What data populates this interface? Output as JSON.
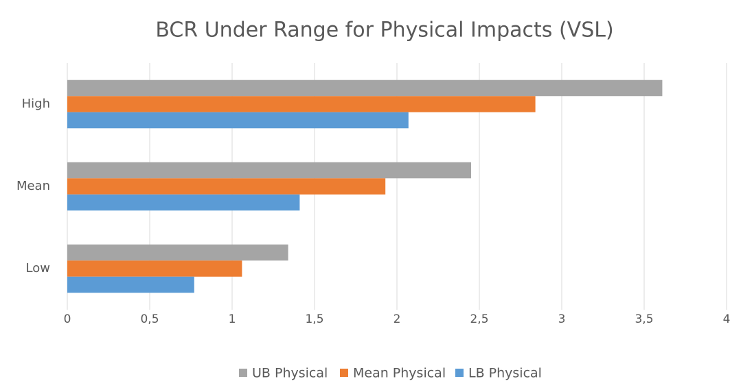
{
  "chart_data": {
    "type": "barh",
    "title": "BCR Under Range for Physical Impacts (VSL)",
    "categories": [
      "Low",
      "Mean",
      "High"
    ],
    "series": [
      {
        "name": "UB Physical",
        "color": "#a5a5a5",
        "values": [
          1.34,
          2.45,
          3.61
        ]
      },
      {
        "name": "Mean Physical",
        "color": "#ed7d31",
        "values": [
          1.06,
          1.93,
          2.84
        ]
      },
      {
        "name": "LB Physical",
        "color": "#5b9bd5",
        "values": [
          0.77,
          1.41,
          2.07
        ]
      }
    ],
    "xlim": [
      0,
      4
    ],
    "xticks": [
      0,
      {
        "value": 0.5,
        "label": "0,5"
      },
      1,
      {
        "value": 1.5,
        "label": "1,5"
      },
      2,
      {
        "value": 2.5,
        "label": "2,5"
      },
      3,
      {
        "value": 3.5,
        "label": "3,5"
      },
      4
    ],
    "grid": true,
    "legend": "bottom"
  }
}
